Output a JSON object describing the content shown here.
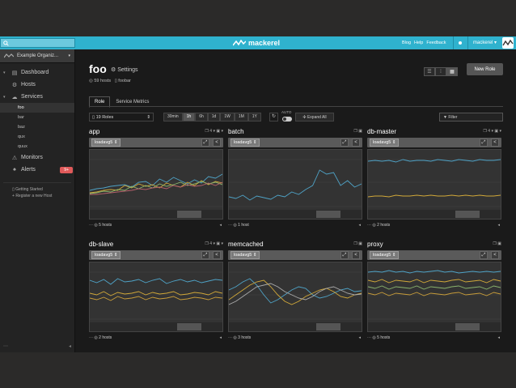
{
  "header": {
    "search_placeholder": "",
    "brand": "mackerel",
    "links": [
      "Blog",
      "Help",
      "Feedback"
    ],
    "user": "mackerel ▾"
  },
  "sidebar": {
    "org": "Example Organiz...",
    "items": [
      {
        "label": "Dashboard",
        "arrow": "▾",
        "icon": "▤"
      },
      {
        "label": "Hosts",
        "arrow": "",
        "icon": "⚙"
      },
      {
        "label": "Services",
        "arrow": "▾",
        "icon": "☁"
      }
    ],
    "services": [
      "foo",
      "bar",
      "baz",
      "qux",
      "quux"
    ],
    "monitors": "Monitors",
    "alerts": "Alerts",
    "alerts_badge": "9+",
    "getting_started": "Getting Started",
    "register_host": "Register a new Host",
    "footer_left": "⋯",
    "footer_right": "◂"
  },
  "page": {
    "title": "foo",
    "settings": "Settings",
    "hosts_count": "59 hosts",
    "role_link": "foobar",
    "new_role": "New Role",
    "tabs": [
      "Role",
      "Service Metrics"
    ],
    "role_count": "19 Roles",
    "ranges": [
      "30min",
      "1h",
      "6h",
      "1d",
      "1W",
      "1M",
      "1Y"
    ],
    "active_range": "1h",
    "auto": "AUTO",
    "expand_all": "Expand All",
    "filter_placeholder": "Filter"
  },
  "cards": [
    {
      "title": "app",
      "metric": "loadavg5",
      "hosts": "5 hosts",
      "icons": "❒ 4 ▾ ▣ ▾"
    },
    {
      "title": "batch",
      "metric": "loadavg5",
      "hosts": "1 host",
      "icons": "❒ ▣"
    },
    {
      "title": "db-master",
      "metric": "loadavg5",
      "hosts": "2 hosts",
      "icons": "❒ 4 ▾ ▣ ▾"
    },
    {
      "title": "db-slave",
      "metric": "loadavg5",
      "hosts": "2 hosts",
      "icons": "❒ 4 ▾ ▣ ▾"
    },
    {
      "title": "memcached",
      "metric": "loadavg5",
      "hosts": "3 hosts",
      "icons": "❒ ▣"
    },
    {
      "title": "proxy",
      "metric": "loadavg5",
      "hosts": "5 hosts",
      "icons": "❒ ▣"
    }
  ],
  "colors": {
    "accent": "#2fb2ce",
    "alert": "#e05a5a"
  }
}
